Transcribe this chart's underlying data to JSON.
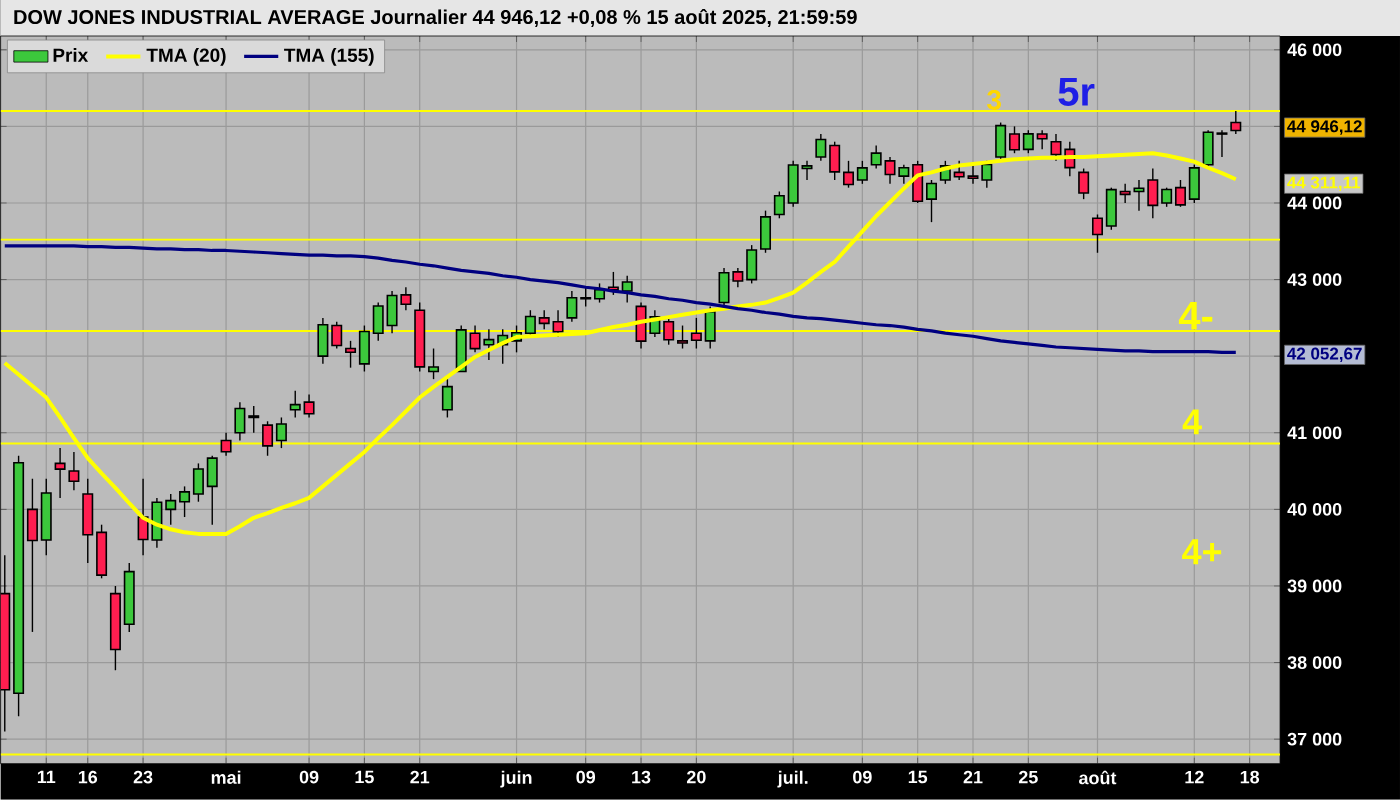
{
  "chart_data": {
    "type": "candlestick",
    "title": "DOW JONES INDUSTRIAL AVERAGE Journalier 44 946,12 +0,08 % 15 août 2025, 21:59:59",
    "categories": [
      null,
      null,
      null,
      "11",
      null,
      null,
      "16",
      null,
      null,
      null,
      "23",
      null,
      null,
      null,
      null,
      null,
      "mai",
      null,
      null,
      null,
      null,
      null,
      "09",
      null,
      null,
      null,
      "15",
      null,
      null,
      null,
      "21",
      null,
      null,
      null,
      null,
      null,
      null,
      "juin",
      null,
      null,
      null,
      null,
      "09",
      null,
      null,
      null,
      "13",
      null,
      null,
      null,
      "20",
      null,
      null,
      null,
      null,
      null,
      null,
      "juil.",
      null,
      null,
      null,
      null,
      "09",
      null,
      null,
      null,
      "15",
      null,
      null,
      null,
      "21",
      null,
      null,
      null,
      "25",
      null,
      null,
      null,
      null,
      "août",
      null,
      null,
      null,
      null,
      null,
      null,
      "12",
      null,
      null,
      null,
      "18"
    ],
    "series": [
      {
        "name": "Prix",
        "type": "candlestick",
        "colors": [
          "#ff1e50",
          "#3cc83c",
          "#ff1e50",
          "#3cc83c",
          "#ff1e50",
          "#ff1e50",
          "#ff1e50",
          "#ff1e50",
          "#ff1e50",
          "#3cc83c",
          "#ff1e50",
          "#3cc83c",
          "#3cc83c",
          "#3cc83c",
          "#3cc83c",
          "#3cc83c",
          "#ff1e50",
          "#3cc83c",
          "#3cc83c",
          "#ff1e50",
          "#3cc83c",
          "#3cc83c",
          "#ff1e50",
          "#3cc83c",
          "#ff1e50",
          "#ff1e50",
          "#3cc83c",
          "#3cc83c",
          "#3cc83c",
          "#ff1e50",
          "#ff1e50",
          "#3cc83c",
          "#3cc83c",
          "#3cc83c",
          "#ff1e50",
          "#3cc83c",
          "#3cc83c",
          "#3cc83c",
          "#3cc83c",
          "#ff1e50",
          "#ff1e50",
          "#3cc83c",
          "#3cc83c",
          "#3cc83c",
          "#ff1e50",
          "#3cc83c",
          "#ff1e50",
          "#3cc83c",
          "#ff1e50",
          "#ff1e50",
          "#ff1e50",
          "#3cc83c",
          "#3cc83c",
          "#ff1e50",
          "#3cc83c",
          "#3cc83c",
          "#3cc83c",
          "#3cc83c",
          "#3cc83c",
          "#3cc83c",
          "#ff1e50",
          "#ff1e50",
          "#3cc83c",
          "#3cc83c",
          "#ff1e50",
          "#3cc83c",
          "#ff1e50",
          "#3cc83c",
          "#3cc83c",
          "#ff1e50",
          "#ff1e50",
          "#3cc83c",
          "#3cc83c",
          "#ff1e50",
          "#3cc83c",
          "#ff1e50",
          "#ff1e50",
          "#ff1e50",
          "#ff1e50",
          "#ff1e50",
          "#3cc83c",
          "#ff1e50",
          "#3cc83c",
          "#ff1e50",
          "#3cc83c",
          "#ff1e50",
          "#3cc83c",
          "#3cc83c",
          "#3cc83c",
          "#ff1e50",
          null
        ],
        "ohlc": [
          [
            38900,
            39400,
            37100,
            37645
          ],
          [
            37600,
            40700,
            37300,
            40608
          ],
          [
            40000,
            40400,
            38400,
            39593
          ],
          [
            39600,
            40400,
            39400,
            40213
          ],
          [
            40600,
            40800,
            40150,
            40525
          ],
          [
            40500,
            40750,
            40250,
            40368
          ],
          [
            40200,
            40400,
            39300,
            39669
          ],
          [
            39700,
            39800,
            39100,
            39142
          ],
          [
            38900,
            39000,
            37900,
            38170
          ],
          [
            38500,
            39300,
            38400,
            39187
          ],
          [
            39900,
            40400,
            39400,
            39607
          ],
          [
            39600,
            40150,
            39500,
            40093
          ],
          [
            40000,
            40200,
            39800,
            40114
          ],
          [
            40100,
            40300,
            39900,
            40228
          ],
          [
            40200,
            40600,
            40100,
            40527
          ],
          [
            40300,
            40700,
            39800,
            40669
          ],
          [
            40900,
            41000,
            40700,
            40753
          ],
          [
            41000,
            41400,
            40900,
            41317
          ],
          [
            41200,
            41350,
            41000,
            41219
          ],
          [
            41100,
            41150,
            40700,
            40829
          ],
          [
            40900,
            41200,
            40800,
            41114
          ],
          [
            41300,
            41550,
            41200,
            41368
          ],
          [
            41400,
            41500,
            41200,
            41249
          ],
          [
            42000,
            42500,
            41900,
            42410
          ],
          [
            42400,
            42450,
            42100,
            42140
          ],
          [
            42100,
            42200,
            41850,
            42051
          ],
          [
            41900,
            42400,
            41800,
            42323
          ],
          [
            42300,
            42700,
            42200,
            42655
          ],
          [
            42400,
            42850,
            42300,
            42792
          ],
          [
            42800,
            42900,
            42600,
            42677
          ],
          [
            42600,
            42700,
            41800,
            41860
          ],
          [
            41800,
            42100,
            41700,
            41859
          ],
          [
            41300,
            41700,
            41200,
            41603
          ],
          [
            41800,
            42400,
            41800,
            42343
          ],
          [
            42300,
            42400,
            42050,
            42098
          ],
          [
            42150,
            42350,
            41950,
            42216
          ],
          [
            42150,
            42350,
            41900,
            42270
          ],
          [
            42200,
            42400,
            42050,
            42305
          ],
          [
            42300,
            42600,
            42250,
            42519
          ],
          [
            42500,
            42600,
            42350,
            42428
          ],
          [
            42450,
            42600,
            42250,
            42319
          ],
          [
            42500,
            42850,
            42450,
            42763
          ],
          [
            42750,
            42900,
            42650,
            42762
          ],
          [
            42750,
            42950,
            42700,
            42867
          ],
          [
            42900,
            43100,
            42800,
            42865
          ],
          [
            42850,
            43050,
            42700,
            42968
          ],
          [
            42650,
            42700,
            42100,
            42197
          ],
          [
            42300,
            42600,
            42250,
            42515
          ],
          [
            42450,
            42500,
            42150,
            42215
          ],
          [
            42200,
            42400,
            42100,
            42172
          ],
          [
            42300,
            42500,
            42100,
            42207
          ],
          [
            42200,
            42650,
            42100,
            42582
          ],
          [
            42700,
            43150,
            42650,
            43089
          ],
          [
            43100,
            43150,
            42900,
            42982
          ],
          [
            43000,
            43450,
            42950,
            43386
          ],
          [
            43400,
            43900,
            43350,
            43819
          ],
          [
            43850,
            44150,
            43800,
            44095
          ],
          [
            44000,
            44550,
            43950,
            44495
          ],
          [
            44450,
            44550,
            44300,
            44484
          ],
          [
            44600,
            44900,
            44550,
            44829
          ],
          [
            44750,
            44800,
            44300,
            44406
          ],
          [
            44400,
            44550,
            44200,
            44241
          ],
          [
            44300,
            44550,
            44250,
            44458
          ],
          [
            44500,
            44750,
            44450,
            44651
          ],
          [
            44550,
            44600,
            44250,
            44371
          ],
          [
            44350,
            44500,
            44250,
            44460
          ],
          [
            44500,
            44550,
            44000,
            44023
          ],
          [
            44050,
            44300,
            43750,
            44254
          ],
          [
            44300,
            44550,
            44250,
            44484
          ],
          [
            44400,
            44550,
            44300,
            44342
          ],
          [
            44350,
            44500,
            44250,
            44323
          ],
          [
            44300,
            44550,
            44200,
            44502
          ],
          [
            44600,
            45050,
            44550,
            45010
          ],
          [
            44900,
            45000,
            44650,
            44694
          ],
          [
            44700,
            44950,
            44650,
            44902
          ],
          [
            44900,
            44950,
            44700,
            44838
          ],
          [
            44800,
            44900,
            44550,
            44633
          ],
          [
            44700,
            44800,
            44350,
            44461
          ],
          [
            44400,
            44450,
            44050,
            44131
          ],
          [
            43800,
            43850,
            43350,
            43589
          ],
          [
            43700,
            44200,
            43650,
            44174
          ],
          [
            44150,
            44250,
            44000,
            44112
          ],
          [
            44150,
            44300,
            43900,
            44193
          ],
          [
            44300,
            44450,
            43800,
            43969
          ],
          [
            44000,
            44200,
            43950,
            44176
          ],
          [
            44200,
            44300,
            43950,
            43975
          ],
          [
            44050,
            44500,
            44000,
            44459
          ],
          [
            44500,
            44950,
            44450,
            44923
          ],
          [
            44900,
            44950,
            44600,
            44912
          ],
          [
            45050,
            45200,
            44900,
            44946
          ],
          null
        ]
      },
      {
        "name": "TMA (20)",
        "type": "line",
        "color": "#ffff00",
        "values": [
          41910,
          41760,
          41610,
          41460,
          41200,
          40930,
          40670,
          40470,
          40280,
          40080,
          39890,
          39800,
          39740,
          39700,
          39680,
          39680,
          39680,
          39780,
          39890,
          39950,
          40020,
          40080,
          40150,
          40300,
          40450,
          40600,
          40750,
          40930,
          41100,
          41280,
          41460,
          41600,
          41730,
          41860,
          41990,
          42080,
          42170,
          42250,
          42260,
          42270,
          42280,
          42290,
          42300,
          42340,
          42380,
          42410,
          42450,
          42480,
          42510,
          42540,
          42570,
          42600,
          42620,
          42650,
          42670,
          42700,
          42760,
          42830,
          42960,
          43100,
          43230,
          43430,
          43630,
          43830,
          44010,
          44190,
          44360,
          44400,
          44450,
          44490,
          44510,
          44530,
          44550,
          44570,
          44580,
          44590,
          44590,
          44600,
          44600,
          44610,
          44620,
          44630,
          44640,
          44650,
          44620,
          44580,
          44540,
          44460,
          44390,
          44310,
          null
        ]
      },
      {
        "name": "TMA (155)",
        "type": "line",
        "color": "#000080",
        "values": [
          43440,
          43440,
          43440,
          43440,
          43440,
          43440,
          43430,
          43430,
          43420,
          43420,
          43410,
          43400,
          43400,
          43390,
          43390,
          43380,
          43380,
          43370,
          43360,
          43350,
          43340,
          43330,
          43320,
          43320,
          43310,
          43310,
          43300,
          43280,
          43250,
          43230,
          43200,
          43180,
          43150,
          43120,
          43100,
          43080,
          43050,
          43030,
          43000,
          42980,
          42960,
          42930,
          42900,
          42880,
          42850,
          42830,
          42800,
          42780,
          42750,
          42730,
          42700,
          42680,
          42650,
          42620,
          42600,
          42570,
          42550,
          42520,
          42500,
          42490,
          42470,
          42450,
          42430,
          42410,
          42400,
          42380,
          42350,
          42330,
          42300,
          42280,
          42260,
          42230,
          42200,
          42180,
          42160,
          42140,
          42120,
          42110,
          42100,
          42090,
          42080,
          42070,
          42070,
          42060,
          42060,
          42060,
          42060,
          42060,
          42050,
          42050,
          null
        ]
      }
    ],
    "ylim": [
      36680,
      46180
    ],
    "yticks": [
      {
        "value": 37000,
        "label": "37 000"
      },
      {
        "value": 38000,
        "label": "38 000"
      },
      {
        "value": 39000,
        "label": "39 000"
      },
      {
        "value": 40000,
        "label": "40 000"
      },
      {
        "value": 41000,
        "label": "41 000"
      },
      {
        "value": 42000,
        "label": null
      },
      {
        "value": 43000,
        "label": "43 000"
      },
      {
        "value": 44000,
        "label": "44 000"
      },
      {
        "value": 45000,
        "label": null
      },
      {
        "value": 46000,
        "label": "46 000"
      }
    ],
    "ref_lines": [
      {
        "axis": "y",
        "value": 45200,
        "color": "#ffff00"
      },
      {
        "axis": "y",
        "value": 43520,
        "color": "#ffff00"
      },
      {
        "axis": "y",
        "value": 42330,
        "color": "#ffff00"
      },
      {
        "axis": "y",
        "value": 40860,
        "color": "#ffff00"
      },
      {
        "axis": "y",
        "value": 36800,
        "color": "#ffff00"
      }
    ],
    "annotations": [
      "3",
      "5r",
      "4-",
      "4",
      "4+",
      "44 946,12",
      "44 311,11",
      "42 052,67"
    ],
    "grid": true,
    "legend": "top left"
  }
}
